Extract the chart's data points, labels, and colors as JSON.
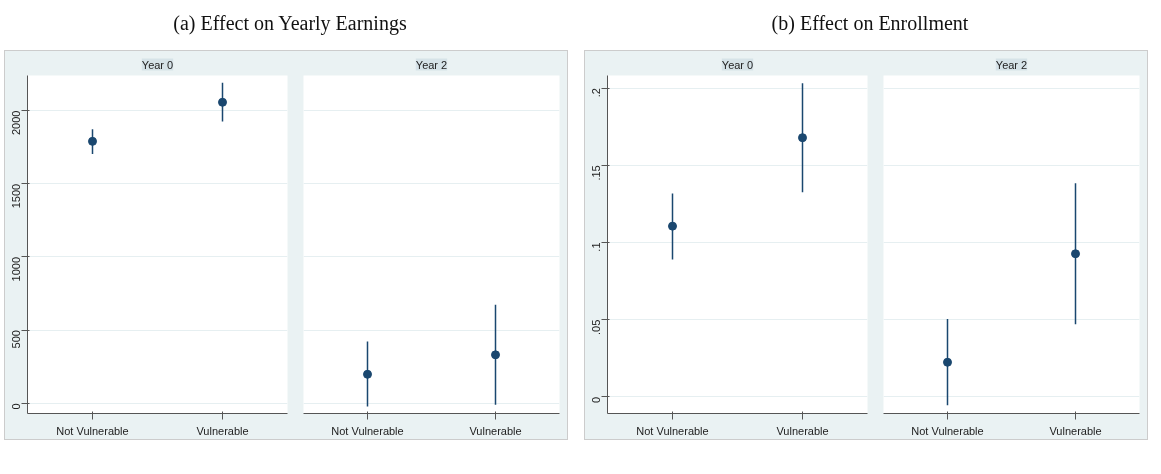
{
  "chart_data": [
    {
      "type": "scatter",
      "title": "(a) Effect on Yearly Earnings",
      "subtitle": "Year 0",
      "categories": [
        "Not Vulnerable",
        "Vulnerable"
      ],
      "series": [
        {
          "color": "#1a476f",
          "values": [
            1790,
            2057
          ],
          "errors": [
            [
              1704,
              1872
            ],
            [
              1925,
              2191
            ]
          ]
        }
      ],
      "ylim": [
        -70,
        2240
      ],
      "yticks": [
        0,
        500,
        1000,
        1500,
        2000
      ],
      "grid": "y",
      "marker": "circle"
    },
    {
      "type": "scatter",
      "subtitle": "Year 2",
      "categories": [
        "Not Vulnerable",
        "Vulnerable"
      ],
      "series": [
        {
          "color": "#1a476f",
          "values": [
            198,
            331
          ],
          "errors": [
            [
              -23,
              422
            ],
            [
              -11,
              673
            ]
          ]
        }
      ],
      "ylim": [
        -70,
        2240
      ],
      "yticks": [
        0,
        500,
        1000,
        1500,
        2000
      ],
      "grid": "y",
      "marker": "circle",
      "tick_labels": "x"
    },
    {
      "type": "scatter",
      "title": "(b) Effect on Enrollment",
      "subtitle": "Year 0",
      "categories": [
        "Not Vulnerable",
        "Vulnerable"
      ],
      "series": [
        {
          "color": "#1a476f",
          "values": [
            0.1106,
            0.1679
          ],
          "errors": [
            [
              0.089,
              0.1317
            ],
            [
              0.1325,
              0.2032
            ]
          ]
        }
      ],
      "ylim": [
        -0.0108,
        0.2082
      ],
      "yticks": [
        {
          "value": 0,
          "label": "0"
        },
        {
          "value": 0.05,
          "label": ".05"
        },
        {
          "value": 0.1,
          "label": ".1"
        },
        {
          "value": 0.15,
          "label": ".15"
        },
        {
          "value": 0.2,
          "label": ".2"
        }
      ],
      "grid": "y",
      "marker": "circle"
    },
    {
      "type": "scatter",
      "subtitle": "Year 2",
      "categories": [
        "Not Vulnerable",
        "Vulnerable"
      ],
      "series": [
        {
          "color": "#1a476f",
          "values": [
            0.0224,
            0.0927
          ],
          "errors": [
            [
              -0.0054,
              0.0504
            ],
            [
              0.047,
              0.1384
            ]
          ]
        }
      ],
      "ylim": [
        -0.0108,
        0.2082
      ],
      "yticks": [
        0,
        0.05,
        0.1,
        0.15,
        0.2
      ],
      "grid": "y",
      "marker": "circle",
      "tick_labels": "x"
    }
  ]
}
